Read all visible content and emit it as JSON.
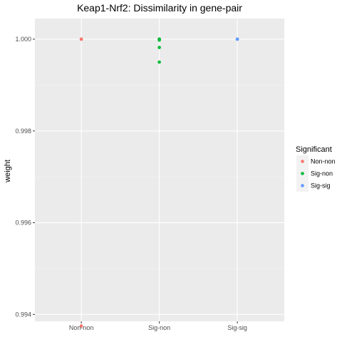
{
  "chart_data": {
    "type": "scatter",
    "title": "Keap1-Nrf2: Dissimilarity in gene-pair",
    "xlabel": "",
    "ylabel": "weight",
    "categories": [
      "Non-non",
      "Sig-non",
      "Sig-sig"
    ],
    "ylim": [
      0.99385,
      1.00045
    ],
    "yticks": [
      0.994,
      0.996,
      0.998,
      1.0
    ],
    "ytick_labels": [
      "0.994",
      "0.996",
      "0.998",
      "1.000"
    ],
    "grid": true,
    "legend": {
      "title": "Significant",
      "placement": "right",
      "entries": [
        "Non-non",
        "Sig-non",
        "Sig-sig"
      ]
    },
    "series": [
      {
        "name": "Non-non",
        "color": "#F8766D",
        "points": [
          {
            "x": "Non-non",
            "y": 1.0
          },
          {
            "x": "Non-non",
            "y": 1.0
          },
          {
            "x": "Non-non",
            "y": 0.99375
          }
        ]
      },
      {
        "name": "Sig-non",
        "color": "#00BA38",
        "points": [
          {
            "x": "Sig-non",
            "y": 1.0
          },
          {
            "x": "Sig-non",
            "y": 1.0
          },
          {
            "x": "Sig-non",
            "y": 1.0
          },
          {
            "x": "Sig-non",
            "y": 0.99998
          },
          {
            "x": "Sig-non",
            "y": 0.99982
          },
          {
            "x": "Sig-non",
            "y": 0.9995
          }
        ]
      },
      {
        "name": "Sig-sig",
        "color": "#619CFF",
        "points": [
          {
            "x": "Sig-sig",
            "y": 1.0
          },
          {
            "x": "Sig-sig",
            "y": 1.0
          }
        ]
      }
    ]
  }
}
